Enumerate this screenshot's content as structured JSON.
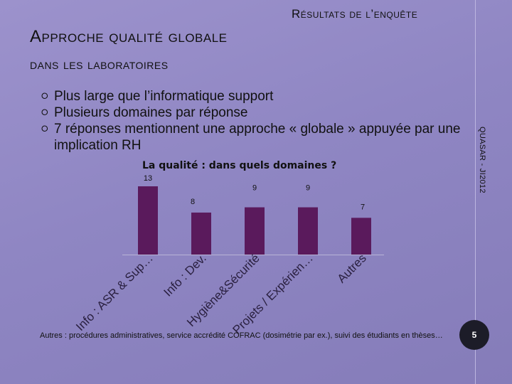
{
  "header": {
    "subtitle": "Résultats de l’enquête"
  },
  "title": {
    "line1": "Approche qualité globale",
    "line2": "dans les laboratoires"
  },
  "bullets": [
    "Plus large que l’informatique support",
    "Plusieurs domaines par réponse",
    "7 réponses mentionnent une approche « globale » appuyée par une implication RH"
  ],
  "side_label": "QUASAR - JI2012",
  "footnote": "Autres : procédures administratives, service accrédité COFRAC (dosimétrie par ex.), suivi des étudiants en thèses…",
  "page_number": "5",
  "chart_data": {
    "type": "bar",
    "title": "La qualité : dans quels domaines ?",
    "categories": [
      "Info : ASR & Sup…",
      "Info : Dev.",
      "Hygiène&Sécurité",
      "Projets / Expérien…",
      "Autres"
    ],
    "values": [
      13,
      8,
      9,
      9,
      7
    ],
    "bar_color": "#5a1a5c",
    "grid": false,
    "xlabel": "",
    "ylabel": ""
  }
}
